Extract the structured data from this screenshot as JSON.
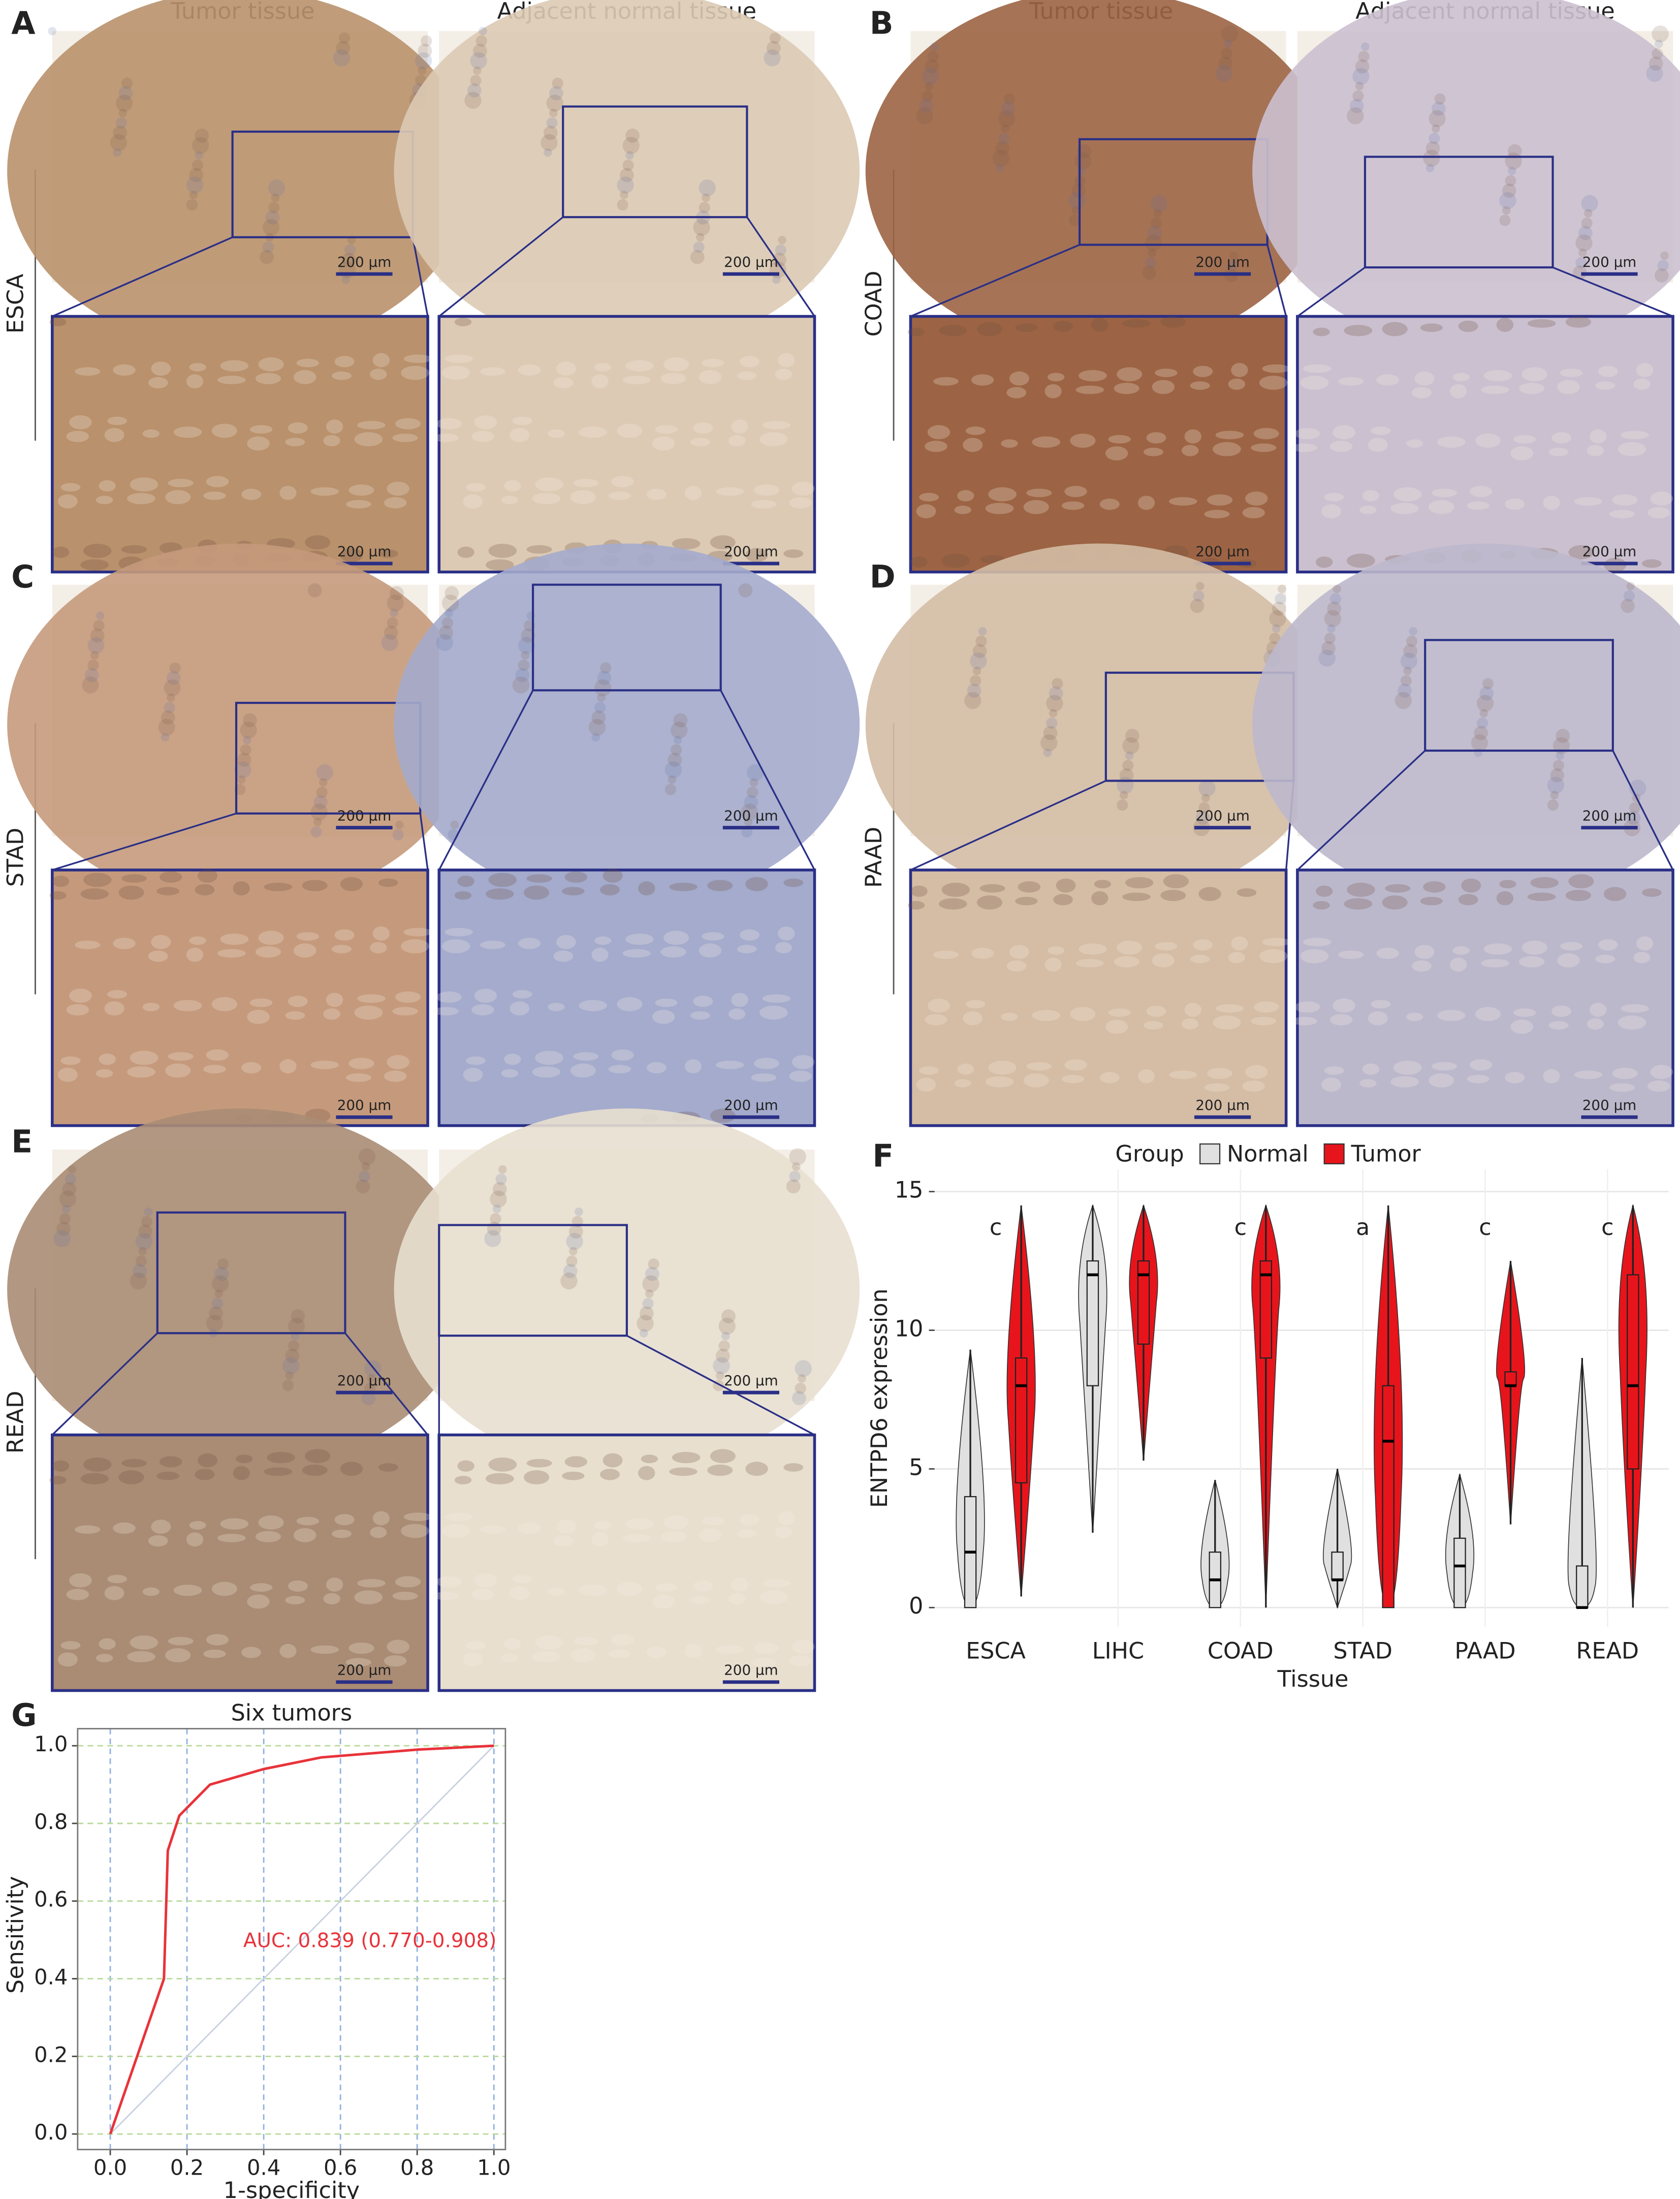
{
  "panels": [
    {
      "label": "A",
      "columns": [
        "Tumor tissue",
        "Adjacent normal tissue"
      ],
      "row": "ESCA",
      "scale_bars": [
        "200 μm",
        "200 μm",
        "200 μm",
        "200 μm"
      ]
    },
    {
      "label": "B",
      "columns": [
        "Tumor tissue",
        "Adjacent normal tissue"
      ],
      "row": "COAD",
      "scale_bars": [
        "200 μm",
        "200 μm",
        "200 μm",
        "200 μm"
      ]
    },
    {
      "label": "C",
      "row": "STAD",
      "scale_bars": [
        "200 μm",
        "200 μm",
        "200 μm",
        "200 μm"
      ]
    },
    {
      "label": "D",
      "row": "PAAD",
      "scale_bars": [
        "200 μm",
        "200 μm",
        "200 μm",
        "200 μm"
      ]
    },
    {
      "label": "E",
      "row": "READ",
      "scale_bars": [
        "200 μm",
        "200 μm",
        "200 μm",
        "200 μm"
      ]
    }
  ],
  "chart_data": [
    {
      "type": "violin",
      "label": "F",
      "xlabel": "Tissue",
      "ylabel": "ENTPD6 expression",
      "legend_title": "Group",
      "categories": [
        "ESCA",
        "LIHC",
        "COAD",
        "STAD",
        "PAAD",
        "READ"
      ],
      "significance": [
        "c",
        null,
        "c",
        "a",
        "c",
        "c"
      ],
      "ylim": [
        -0.7,
        15.8
      ],
      "yticks": [
        0,
        5,
        10,
        15
      ],
      "grid": true,
      "series": [
        {
          "name": "Normal",
          "color": "#e0e0e0",
          "min": [
            0,
            2.7,
            0,
            0,
            0,
            0
          ],
          "q1": [
            0,
            8,
            0,
            1,
            0,
            0
          ],
          "median": [
            2,
            12,
            1,
            1,
            1.5,
            0
          ],
          "q3": [
            4,
            12.5,
            2,
            2,
            2.5,
            1.5
          ],
          "max": [
            9.3,
            14.5,
            4.6,
            5,
            4.8,
            9
          ]
        },
        {
          "name": "Tumor",
          "color": "#e8141b",
          "min": [
            0.4,
            5.3,
            0,
            0,
            3,
            0
          ],
          "q1": [
            4.5,
            9.5,
            9,
            0,
            8,
            5
          ],
          "median": [
            8,
            12,
            12,
            6,
            8,
            8
          ],
          "q3": [
            9,
            12.5,
            12.5,
            8,
            8.5,
            12
          ],
          "max": [
            14.5,
            14.5,
            14.5,
            14.5,
            12.5,
            14.5
          ]
        }
      ]
    },
    {
      "type": "line",
      "label": "G",
      "title": "Six tumors",
      "xlabel": "1-specificity",
      "ylabel": "Sensitivity",
      "annotation": "AUC: 0.839 (0.770-0.908)",
      "color": "#e8333a",
      "x": [
        0,
        0.14,
        0.15,
        0.18,
        0.26,
        0.4,
        0.55,
        0.8,
        1
      ],
      "values": [
        0,
        0.4,
        0.73,
        0.82,
        0.9,
        0.94,
        0.97,
        0.99,
        1
      ],
      "xlim": [
        -0.085,
        1.03
      ],
      "ylim": [
        -0.04,
        1.044
      ],
      "xticks": [
        {
          "value": 0,
          "label": "0.0"
        },
        {
          "value": 0.2,
          "label": "0.2"
        },
        {
          "value": 0.4,
          "label": "0.4"
        },
        {
          "value": 0.6,
          "label": "0.6"
        },
        {
          "value": 0.8,
          "label": "0.8"
        },
        {
          "value": 1,
          "label": "1.0"
        }
      ],
      "yticks": [
        {
          "value": 0,
          "label": "0.0"
        },
        {
          "value": 0.2,
          "label": "0.2"
        },
        {
          "value": 0.4,
          "label": "0.4"
        },
        {
          "value": 0.6,
          "label": "0.6"
        },
        {
          "value": 0.8,
          "label": "0.8"
        },
        {
          "value": 1,
          "label": "1.0"
        }
      ],
      "grid": true
    }
  ]
}
